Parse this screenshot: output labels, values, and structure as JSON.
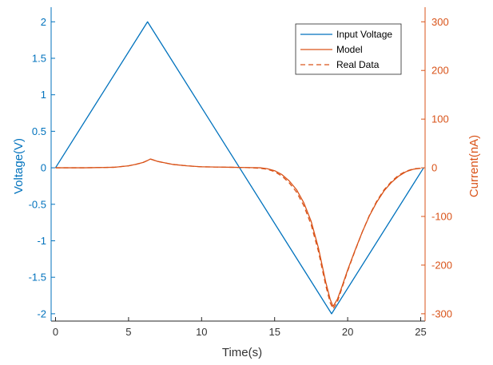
{
  "chart_data": {
    "type": "line",
    "xlabel": "Time(s)",
    "ylabel_left": "Voltage(V)",
    "ylabel_right": "Current(nA)",
    "xlim": [
      -0.3,
      25.3
    ],
    "ylim_left": [
      -2.1,
      2.2
    ],
    "ylim_right": [
      -315,
      330
    ],
    "x_ticks": [
      0,
      5,
      10,
      15,
      20,
      25
    ],
    "y_left_ticks": [
      -2,
      -1.5,
      -1,
      -0.5,
      0,
      0.5,
      1,
      1.5,
      2
    ],
    "y_right_ticks": [
      -300,
      -200,
      -100,
      0,
      100,
      200,
      300
    ],
    "grid": false,
    "legend_position": "top-right",
    "colors": {
      "voltage": "#0072BD",
      "current": "#D95319",
      "axis": "#262626"
    },
    "series": [
      {
        "name": "Input Voltage",
        "axis": "left",
        "style": "solid",
        "x": [
          0,
          6.3,
          18.9,
          25.2
        ],
        "y": [
          0,
          2,
          -2,
          0
        ]
      },
      {
        "name": "Model",
        "axis": "right",
        "style": "solid",
        "x": [
          0,
          2,
          4,
          5,
          5.5,
          6,
          6.3,
          6.5,
          7,
          8,
          9,
          10,
          11,
          12,
          13,
          14,
          14.5,
          15,
          15.5,
          16,
          16.5,
          17,
          17.5,
          18,
          18.5,
          18.8,
          19,
          19.3,
          19.6,
          20,
          20.5,
          21,
          21.5,
          22,
          22.5,
          23,
          23.5,
          24,
          24.5,
          25
        ],
        "y": [
          0,
          0,
          1,
          4,
          7,
          11,
          15,
          18,
          13,
          7,
          4,
          2,
          1.5,
          1,
          0.5,
          0,
          -2,
          -6,
          -14,
          -27,
          -45,
          -72,
          -110,
          -165,
          -235,
          -270,
          -285,
          -270,
          -245,
          -210,
          -170,
          -132,
          -98,
          -70,
          -47,
          -30,
          -17,
          -8,
          -3,
          -1
        ]
      },
      {
        "name": "Real Data",
        "axis": "right",
        "style": "dashed",
        "x": [
          0,
          2,
          4,
          5,
          5.5,
          6,
          6.3,
          6.5,
          7,
          8,
          9,
          10,
          11,
          12,
          13,
          14,
          14.5,
          15,
          15.5,
          16,
          16.5,
          17,
          17.5,
          18,
          18.5,
          18.8,
          19,
          19.3,
          19.6,
          20,
          20.5,
          21,
          21.5,
          22,
          22.5,
          23,
          23.5,
          24,
          24.5,
          25
        ],
        "y": [
          0,
          0,
          1,
          4,
          7,
          11,
          15,
          18,
          13,
          7,
          4,
          2,
          1.5,
          1,
          0.5,
          -1,
          -3,
          -8,
          -17,
          -31,
          -50,
          -78,
          -117,
          -172,
          -242,
          -277,
          -290,
          -275,
          -248,
          -212,
          -171,
          -132,
          -97,
          -68,
          -45,
          -28,
          -15,
          -7,
          -2,
          -1
        ]
      }
    ]
  }
}
